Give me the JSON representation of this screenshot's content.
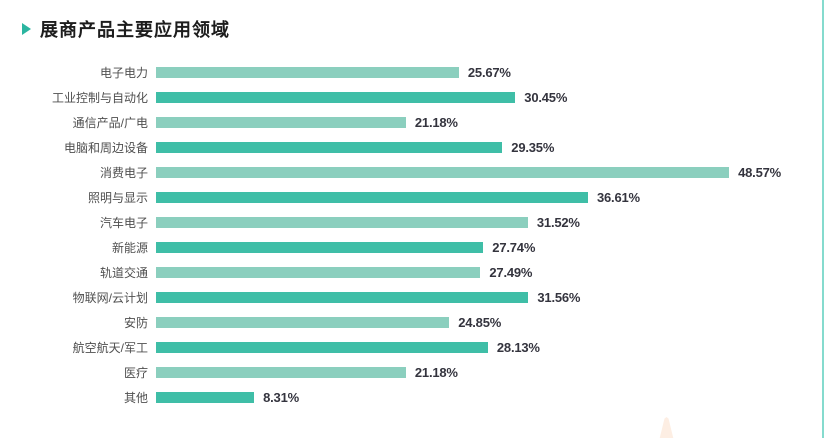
{
  "page": {
    "title": "展商产品主要应用领域"
  },
  "chart_data": {
    "type": "bar",
    "orientation": "horizontal",
    "title": "展商产品主要应用领域",
    "categories": [
      "电子电力",
      "工业控制与自动化",
      "通信产品/广电",
      "电脑和周边设备",
      "消费电子",
      "照明与显示",
      "汽车电子",
      "新能源",
      "轨道交通",
      "物联网/云计划",
      "安防",
      "航空航天/军工",
      "医疗",
      "其他"
    ],
    "values": [
      25.67,
      30.45,
      21.18,
      29.35,
      48.57,
      36.61,
      31.52,
      27.74,
      27.49,
      31.56,
      24.85,
      28.13,
      21.18,
      8.31
    ],
    "value_labels": [
      "25.67%",
      "30.45%",
      "21.18%",
      "29.35%",
      "48.57%",
      "36.61%",
      "31.52%",
      "27.74%",
      "27.49%",
      "31.56%",
      "24.85%",
      "28.13%",
      "21.18%",
      "8.31%"
    ],
    "unit": "%",
    "xlim": [
      0,
      50
    ],
    "bar_colors_alternating": [
      "#8bcfbe",
      "#3fbea7"
    ],
    "grid": "off",
    "legend": "none",
    "axis_ticks": "none"
  },
  "decor": {
    "title_marker_color": "#2bb5a0",
    "right_edge_line_color": "#85dbce",
    "bottom_accent_color": "#fdeee3",
    "category_label_color": "#4f4f4f",
    "value_label_color": "#34343e",
    "title_color": "#1d1d1d"
  }
}
